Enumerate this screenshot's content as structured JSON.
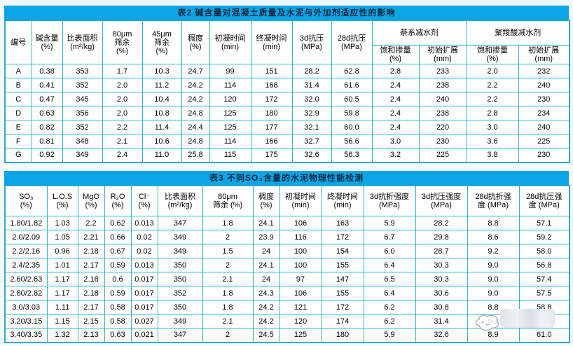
{
  "colors": {
    "title_bar_bg": "#0ba4e4",
    "title_text": "#0e2a47",
    "grid_border": "#33b3c7",
    "cell_bg": "#ffffff",
    "data_text": "#000000"
  },
  "table2": {
    "title": "表2  碱含量对混凝土质量及水泥与外加剂适应性的影响",
    "headers": [
      "编号",
      "碱含量\n(%)",
      "比表面积\n(m²/kg)",
      "80μm\n筛余\n(%)",
      "45μm\n筛余\n(%)",
      "稠度\n(%)",
      "初凝时间\n(min)",
      "终凝时间\n(min)",
      "3d抗压\n(MPa)",
      "28d抗压\n(MPa)"
    ],
    "groups": [
      {
        "label": "萘系减水剂",
        "children": [
          "饱和掺量\n(%)",
          "初始扩展\n(mm)"
        ]
      },
      {
        "label": "聚羧酸减水剂",
        "children": [
          "饱和掺量\n(%)",
          "初始扩展\n(mm)"
        ]
      }
    ],
    "rows": [
      [
        "A",
        "0.38",
        "353",
        "1.7",
        "10.3",
        "24.7",
        "99",
        "151",
        "28.2",
        "62.8",
        "2.8",
        "233",
        "2.0",
        "232"
      ],
      [
        "B",
        "0.41",
        "352",
        "2.0",
        "11.2",
        "24.2",
        "114",
        "168",
        "31.4",
        "61.6",
        "2.4",
        "238",
        "2.2",
        "240"
      ],
      [
        "C",
        "0.47",
        "345",
        "2.0",
        "10.4",
        "24.2",
        "120",
        "172",
        "32.0",
        "60.5",
        "2.4",
        "240",
        "2.2",
        "230"
      ],
      [
        "D",
        "0.63",
        "356",
        "2.0",
        "10.8",
        "24.8",
        "125",
        "180",
        "32.9",
        "59.8",
        "2.4",
        "238",
        "2.8",
        "234"
      ],
      [
        "E",
        "0.82",
        "352",
        "2.2",
        "11.4",
        "24.4",
        "125",
        "177",
        "32.1",
        "60.0",
        "2.4",
        "220",
        "3.0",
        "240"
      ],
      [
        "F",
        "0.81",
        "348",
        "2.1",
        "10.6",
        "24.8",
        "114",
        "166",
        "32.7",
        "56.6",
        "3.0",
        "230",
        "3.6",
        "225"
      ],
      [
        "G",
        "0.92",
        "349",
        "2.4",
        "11.0",
        "25.8",
        "115",
        "175",
        "32.6",
        "56.3",
        "3.2",
        "225",
        "3.8",
        "230"
      ]
    ]
  },
  "table3": {
    "title": "表3  不同SO₃含量的水泥物理性能检测",
    "headers": [
      "SO₃\n(%)",
      "L.O.S\n(%)",
      "MgO\n(%)",
      "R₂O\n(%)",
      "Cl⁻\n(%)",
      "比表面积\n(m²/kg)",
      "80μm\n筛余 (%)",
      "稠度\n(%)",
      "初凝时间\n(min)",
      "终凝时间\n(min)",
      "3d抗折强度\n(MPa)",
      "3d抗压强度\n(MPa)",
      "28d抗折强\n度 (MPa)",
      "28d抗压强\n度 (MPa)"
    ],
    "rows": [
      [
        "1.80/1.82",
        "1.03",
        "2.2",
        "0.62",
        "0.013",
        "347",
        "1.8",
        "24.1",
        "106",
        "163",
        "5.9",
        "28.2",
        "8.8",
        "57.1"
      ],
      [
        "2.0/2.09",
        "1.05",
        "2.21",
        "0.66",
        "0.02",
        "349",
        "2",
        "23.9",
        "116",
        "172",
        "6.7",
        "29.8",
        "8.6",
        "59.2"
      ],
      [
        "2.2/2.16",
        "0.96",
        "2.18",
        "0.67",
        "0.02",
        "349",
        "1.5",
        "24",
        "100",
        "154",
        "6.0",
        "28.7",
        "9.2",
        "58.0"
      ],
      [
        "2.4/2.35",
        "1.01",
        "2.17",
        "0.59",
        "0.013",
        "350",
        "2",
        "24.1",
        "100",
        "155",
        "6.4",
        "30.3",
        "9.0",
        "56.8"
      ],
      [
        "2.60/2.63",
        "1.17",
        "2.18",
        "0.6",
        "0.017",
        "350",
        "2.1",
        "24",
        "97",
        "147",
        "6.5",
        "30.3",
        "9.0",
        "57.4"
      ],
      [
        "2.80/2.82",
        "1.17",
        "2.18",
        "0.59",
        "0.017",
        "352",
        "1.8",
        "24.3",
        "106",
        "155",
        "6.4",
        "30.6",
        "9.0",
        "57.5"
      ],
      [
        "3.0/3.03",
        "1.11",
        "2.17",
        "0.58",
        "0.017",
        "350",
        "1.8",
        "24.2",
        "121",
        "172",
        "6.2",
        "30.8",
        "8.8",
        "58.8"
      ],
      [
        "3.20/3.15",
        "1.15",
        "2.15",
        "0.58",
        "0.027",
        "349",
        "2.1",
        "24.2",
        "120",
        "174",
        "6.2",
        "31.4",
        "9.1",
        "9"
      ],
      [
        "3.40/3.35",
        "1.32",
        "2.13",
        "0.63",
        "0.021",
        "347",
        "2",
        "24.5",
        "125",
        "180",
        "5.9",
        "32.6",
        "8.9",
        "61.0"
      ]
    ],
    "watermark_note": "watermark partially covers last cell of row 8"
  }
}
